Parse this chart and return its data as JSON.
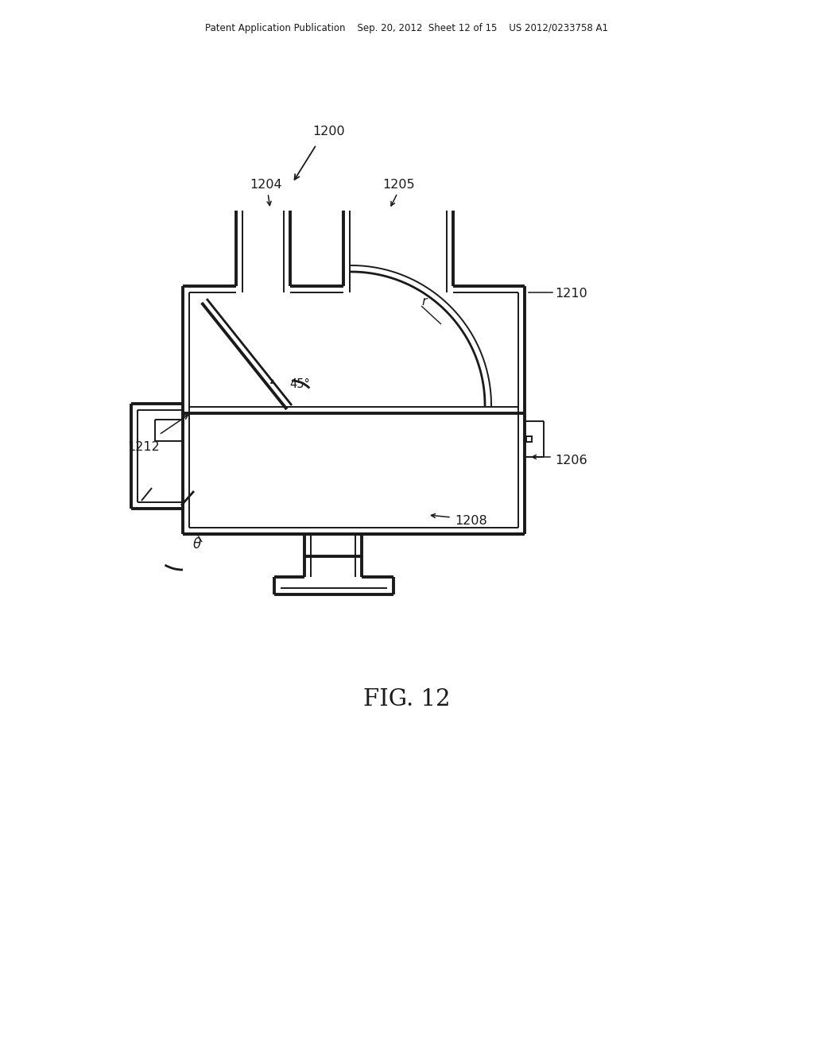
{
  "background_color": "#ffffff",
  "line_color": "#1a1a1a",
  "header_text": "Patent Application Publication    Sep. 20, 2012  Sheet 12 of 15    US 2012/0233758 A1",
  "figure_label": "FIG. 12",
  "ref_1200": "1200",
  "ref_1204": "1204",
  "ref_1205": "1205",
  "ref_1206": "1206",
  "ref_1208": "1208",
  "ref_1210": "1210",
  "ref_1212": "1212",
  "label_45": "45°",
  "label_r": "r",
  "label_theta": "θ"
}
